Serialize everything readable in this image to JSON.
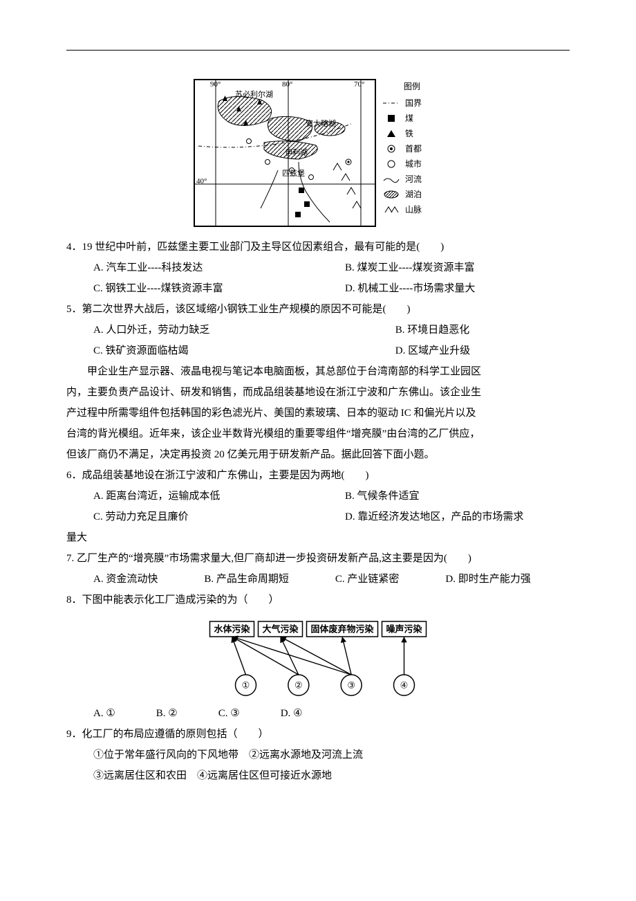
{
  "map": {
    "lonLabels": [
      "90°",
      "80°",
      "70°"
    ],
    "latLabel": "40°",
    "lakes": [
      "苏必利尔湖",
      "安大略湖",
      "伊利湖"
    ],
    "city": "匹兹堡"
  },
  "legend": {
    "title": "图例",
    "items": [
      {
        "symbol": "border",
        "label": "国界"
      },
      {
        "symbol": "coal",
        "label": "煤"
      },
      {
        "symbol": "iron",
        "label": "铁"
      },
      {
        "symbol": "capital",
        "label": "首都"
      },
      {
        "symbol": "city",
        "label": "城市"
      },
      {
        "symbol": "river",
        "label": "河流"
      },
      {
        "symbol": "lake",
        "label": "湖泊"
      },
      {
        "symbol": "mtn",
        "label": "山脉"
      }
    ]
  },
  "q4": {
    "stem": "4．19 世纪中叶前，匹兹堡主要工业部门及主导区位因素组合，最有可能的是(　　)",
    "A": "A. 汽车工业----科技发达",
    "B": "B. 煤炭工业----煤炭资源丰富",
    "C": "C. 钢铁工业----煤铁资源丰富",
    "D": "D. 机械工业----市场需求量大"
  },
  "q5": {
    "stem": "5．第二次世界大战后，该区域缩小钢铁工业生产规模的原因不可能是(　　)",
    "A": "A. 人口外迁，劳动力缺乏",
    "B": "B. 环境日趋恶化",
    "C": "C. 铁矿资源面临枯竭",
    "D": "D. 区域产业升级"
  },
  "passage": {
    "l1": "甲企业生产显示器、液晶电视与笔记本电脑面板，其总部位于台湾南部的科学工业园区",
    "l2": "内，主要负责产品设计、研发和销售，而成品组装基地设在浙江宁波和广东佛山。该企业生",
    "l3": "产过程中所需零组件包括韩国的彩色滤光片、美国的素玻璃、日本的驱动 IC 和偏光片以及",
    "l4": "台湾的背光模组。近年来，该企业半数背光模组的重要零组件“增亮膜”由台湾的乙厂供应，",
    "l5": "但该厂商仍不满足，决定再投资 20 亿美元用于研发新产品。据此回答下面小题。"
  },
  "q6": {
    "stem": "6．成品组装基地设在浙江宁波和广东佛山，主要是因为两地(　　)",
    "A": "A. 距离台湾近，运输成本低",
    "B": "B. 气候条件适宜",
    "C": "C. 劳动力充足且廉价",
    "D": "D. 靠近经济发达地区，产品的市场需求",
    "D_tail": "量大"
  },
  "q7": {
    "stem": "7. 乙厂生产的“增亮膜”市场需求量大,但厂商却进一步投资研发新产品,这主要是因为(　　)",
    "A": "A. 资金流动快",
    "B": "B. 产品生命周期短",
    "C": "C. 产业链紧密",
    "D": "D. 即时生产能力强"
  },
  "q8": {
    "stem": "8．下图中能表示化工厂造成污染的为（　　）",
    "A": "A. ①",
    "B": "B. ②",
    "C": "C. ③",
    "D": "D. ④"
  },
  "flow": {
    "topBoxes": [
      "水体污染",
      "大气污染",
      "固体废弃物污染",
      "噪声污染"
    ],
    "circles": [
      "①",
      "②",
      "③",
      "④"
    ],
    "boxColor": "#000000",
    "lineColor": "#000000",
    "bg": "#ffffff",
    "fontsize": 13,
    "boxHeight": 22,
    "circleR": 15,
    "edges": [
      {
        "from": 0,
        "to": 0
      },
      {
        "from": 1,
        "to": 0
      },
      {
        "from": 1,
        "to": 1
      },
      {
        "from": 2,
        "to": 0
      },
      {
        "from": 2,
        "to": 1
      },
      {
        "from": 2,
        "to": 2
      },
      {
        "from": 3,
        "to": 3
      }
    ]
  },
  "q9": {
    "stem": "9．化工厂的布局应遵循的原则包括（　　）",
    "s1": "①位于常年盛行风向的下风地带　②远离水源地及河流上流",
    "s2": "③远离居住区和农田　④远离居住区但可接近水源地"
  }
}
